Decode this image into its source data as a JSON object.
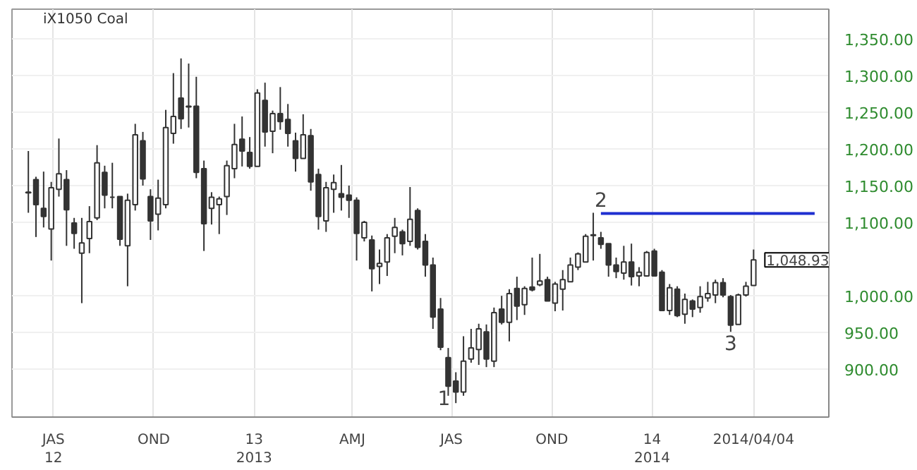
{
  "chart_data": {
    "type": "candlestick",
    "title": "iX1050 Coal",
    "color": "#333333",
    "x": [
      "2012-06-08",
      "2012-06-15",
      "2012-06-22",
      "2012-06-29",
      "2012-07-06",
      "2012-07-13",
      "2012-07-20",
      "2012-07-27",
      "2012-08-03",
      "2012-08-10",
      "2012-08-17",
      "2012-08-24",
      "2012-08-31",
      "2012-09-07",
      "2012-09-14",
      "2012-09-21",
      "2012-09-28",
      "2012-10-05",
      "2012-10-12",
      "2012-10-19",
      "2012-10-26",
      "2012-11-02",
      "2012-11-09",
      "2012-11-16",
      "2012-11-23",
      "2012-11-30",
      "2012-12-07",
      "2012-12-14",
      "2012-12-21",
      "2012-12-28",
      "2013-01-04",
      "2013-01-11",
      "2013-01-18",
      "2013-01-25",
      "2013-02-01",
      "2013-02-08",
      "2013-02-15",
      "2013-02-22",
      "2013-03-01",
      "2013-03-08",
      "2013-03-15",
      "2013-03-22",
      "2013-03-29",
      "2013-04-05",
      "2013-04-12",
      "2013-04-19",
      "2013-04-26",
      "2013-05-03",
      "2013-05-10",
      "2013-05-17",
      "2013-05-24",
      "2013-05-31",
      "2013-06-07",
      "2013-06-14",
      "2013-06-21",
      "2013-06-28",
      "2013-07-05",
      "2013-07-12",
      "2013-07-19",
      "2013-07-26",
      "2013-08-02",
      "2013-08-09",
      "2013-08-16",
      "2013-08-23",
      "2013-08-30",
      "2013-09-06",
      "2013-09-13",
      "2013-09-20",
      "2013-09-27",
      "2013-10-04",
      "2013-10-11",
      "2013-10-18",
      "2013-10-25",
      "2013-11-01",
      "2013-11-08",
      "2013-11-15",
      "2013-11-22",
      "2013-11-29",
      "2013-12-06",
      "2013-12-13",
      "2013-12-20",
      "2013-12-27",
      "2014-01-03",
      "2014-01-10",
      "2014-01-17",
      "2014-01-24",
      "2014-01-31",
      "2014-02-07",
      "2014-02-14",
      "2014-02-21",
      "2014-02-28",
      "2014-03-07",
      "2014-03-14",
      "2014-03-21",
      "2014-03-28",
      "2014-04-04"
    ],
    "ohlc": [
      [
        1141,
        1197,
        1113,
        1140
      ],
      [
        1158,
        1162,
        1080,
        1124
      ],
      [
        1119,
        1169,
        1093,
        1108
      ],
      [
        1091,
        1155,
        1048,
        1147
      ],
      [
        1145,
        1214,
        1135,
        1166
      ],
      [
        1158,
        1171,
        1068,
        1117
      ],
      [
        1099,
        1106,
        1064,
        1085
      ],
      [
        1058,
        1106,
        990,
        1072
      ],
      [
        1078,
        1122,
        1058,
        1101
      ],
      [
        1106,
        1205,
        1103,
        1181
      ],
      [
        1168,
        1177,
        1119,
        1137
      ],
      [
        1134,
        1181,
        1119,
        1134
      ],
      [
        1135,
        1135,
        1068,
        1077
      ],
      [
        1068,
        1139,
        1013,
        1130
      ],
      [
        1124,
        1234,
        1116,
        1219
      ],
      [
        1211,
        1223,
        1150,
        1159
      ],
      [
        1135,
        1145,
        1076,
        1102
      ],
      [
        1111,
        1158,
        1089,
        1133
      ],
      [
        1124,
        1253,
        1119,
        1229
      ],
      [
        1221,
        1303,
        1207,
        1244
      ],
      [
        1269,
        1323,
        1227,
        1241
      ],
      [
        1258,
        1316,
        1229,
        1257
      ],
      [
        1258,
        1298,
        1160,
        1168
      ],
      [
        1173,
        1184,
        1061,
        1098
      ],
      [
        1119,
        1141,
        1097,
        1134
      ],
      [
        1124,
        1135,
        1084,
        1132
      ],
      [
        1135,
        1184,
        1110,
        1177
      ],
      [
        1173,
        1234,
        1160,
        1206
      ],
      [
        1213,
        1244,
        1176,
        1197
      ],
      [
        1195,
        1216,
        1173,
        1176
      ],
      [
        1176,
        1281,
        1176,
        1276
      ],
      [
        1266,
        1290,
        1203,
        1223
      ],
      [
        1224,
        1252,
        1194,
        1248
      ],
      [
        1248,
        1284,
        1226,
        1237
      ],
      [
        1240,
        1261,
        1203,
        1221
      ],
      [
        1211,
        1222,
        1169,
        1187
      ],
      [
        1187,
        1247,
        1187,
        1219
      ],
      [
        1218,
        1227,
        1143,
        1155
      ],
      [
        1165,
        1173,
        1090,
        1108
      ],
      [
        1102,
        1155,
        1087,
        1147
      ],
      [
        1145,
        1165,
        1113,
        1154
      ],
      [
        1139,
        1178,
        1116,
        1134
      ],
      [
        1137,
        1150,
        1106,
        1130
      ],
      [
        1130,
        1134,
        1048,
        1085
      ],
      [
        1079,
        1102,
        1074,
        1100
      ],
      [
        1076,
        1082,
        1006,
        1037
      ],
      [
        1040,
        1063,
        1016,
        1044
      ],
      [
        1046,
        1084,
        1027,
        1079
      ],
      [
        1081,
        1106,
        1058,
        1093
      ],
      [
        1087,
        1090,
        1055,
        1071
      ],
      [
        1074,
        1148,
        1068,
        1104
      ],
      [
        1116,
        1119,
        1063,
        1066
      ],
      [
        1074,
        1084,
        1026,
        1042
      ],
      [
        1042,
        1052,
        955,
        971
      ],
      [
        982,
        997,
        926,
        930
      ],
      [
        916,
        929,
        864,
        877
      ],
      [
        884,
        896,
        854,
        869
      ],
      [
        869,
        945,
        864,
        911
      ],
      [
        914,
        955,
        909,
        929
      ],
      [
        927,
        962,
        906,
        955
      ],
      [
        951,
        961,
        903,
        914
      ],
      [
        911,
        984,
        903,
        977
      ],
      [
        982,
        1000,
        961,
        964
      ],
      [
        964,
        1009,
        938,
        1003
      ],
      [
        1010,
        1026,
        967,
        986
      ],
      [
        988,
        1013,
        974,
        1010
      ],
      [
        1012,
        1052,
        1006,
        1008
      ],
      [
        1015,
        1057,
        1013,
        1020
      ],
      [
        1022,
        1026,
        993,
        993
      ],
      [
        990,
        1019,
        979,
        1016
      ],
      [
        1009,
        1035,
        980,
        1022
      ],
      [
        1019,
        1052,
        1019,
        1042
      ],
      [
        1039,
        1059,
        1035,
        1057
      ],
      [
        1046,
        1084,
        1046,
        1081
      ],
      [
        1083,
        1113,
        1048,
        1082
      ],
      [
        1079,
        1087,
        1064,
        1070
      ],
      [
        1071,
        1071,
        1026,
        1042
      ],
      [
        1042,
        1052,
        1024,
        1033
      ],
      [
        1031,
        1068,
        1022,
        1046
      ],
      [
        1046,
        1071,
        1014,
        1026
      ],
      [
        1027,
        1039,
        1013,
        1032
      ],
      [
        1027,
        1061,
        1026,
        1059
      ],
      [
        1061,
        1064,
        1027,
        1027
      ],
      [
        1032,
        1035,
        980,
        980
      ],
      [
        980,
        1016,
        974,
        1011
      ],
      [
        1009,
        1013,
        971,
        973
      ],
      [
        975,
        1003,
        962,
        995
      ],
      [
        993,
        995,
        971,
        982
      ],
      [
        984,
        1013,
        977,
        999
      ],
      [
        997,
        1019,
        992,
        1003
      ],
      [
        1001,
        1022,
        990,
        1018
      ],
      [
        1018,
        1024,
        998,
        1001
      ],
      [
        999,
        1001,
        951,
        960
      ],
      [
        961,
        1003,
        961,
        1001
      ],
      [
        1001,
        1019,
        999,
        1013
      ],
      [
        1014,
        1063,
        1014,
        1049
      ]
    ],
    "series": [
      {
        "type": "line",
        "color": "#1f2fd0",
        "x": [
          "2013-11-15",
          "2014-05-30"
        ],
        "values": [
          1112,
          1112
        ]
      }
    ],
    "annotations": [
      {
        "text": "1",
        "x": "2013-07-05",
        "y": 854
      },
      {
        "text": "2",
        "x": "2013-11-15",
        "y": 1113
      },
      {
        "text": "3",
        "x": "2014-03-14",
        "y": 951
      },
      {
        "text": "1,048.93",
        "x": "2014-04-04",
        "y": 1048.93
      }
    ],
    "xlim": [
      "2012-05-24",
      "2014-06-12"
    ],
    "xticks": [
      {
        "value": "2012-07-01",
        "label": "JAS\n12"
      },
      {
        "value": "2012-10-01",
        "label": "OND"
      },
      {
        "value": "2013-01-01",
        "label": "13\n2013"
      },
      {
        "value": "2013-04-01",
        "label": "AMJ"
      },
      {
        "value": "2013-07-01",
        "label": "JAS"
      },
      {
        "value": "2013-10-01",
        "label": "OND"
      },
      {
        "value": "2014-01-01",
        "label": "14\n2014"
      },
      {
        "value": "2014-04-04",
        "label": "2014/04/04"
      }
    ],
    "ylim": [
      835,
      1390
    ],
    "yticks": [
      {
        "value": 900,
        "label": "900.00"
      },
      {
        "value": 950,
        "label": "950.00"
      },
      {
        "value": 1000,
        "label": "1,000.00"
      },
      {
        "value": 1100,
        "label": "1,100.00"
      },
      {
        "value": 1150,
        "label": "1,150.00"
      },
      {
        "value": 1200,
        "label": "1,200.00"
      },
      {
        "value": 1250,
        "label": "1,250.00"
      },
      {
        "value": 1300,
        "label": "1,300.00"
      },
      {
        "value": 1350,
        "label": "1,350.00"
      }
    ],
    "grid": true
  }
}
